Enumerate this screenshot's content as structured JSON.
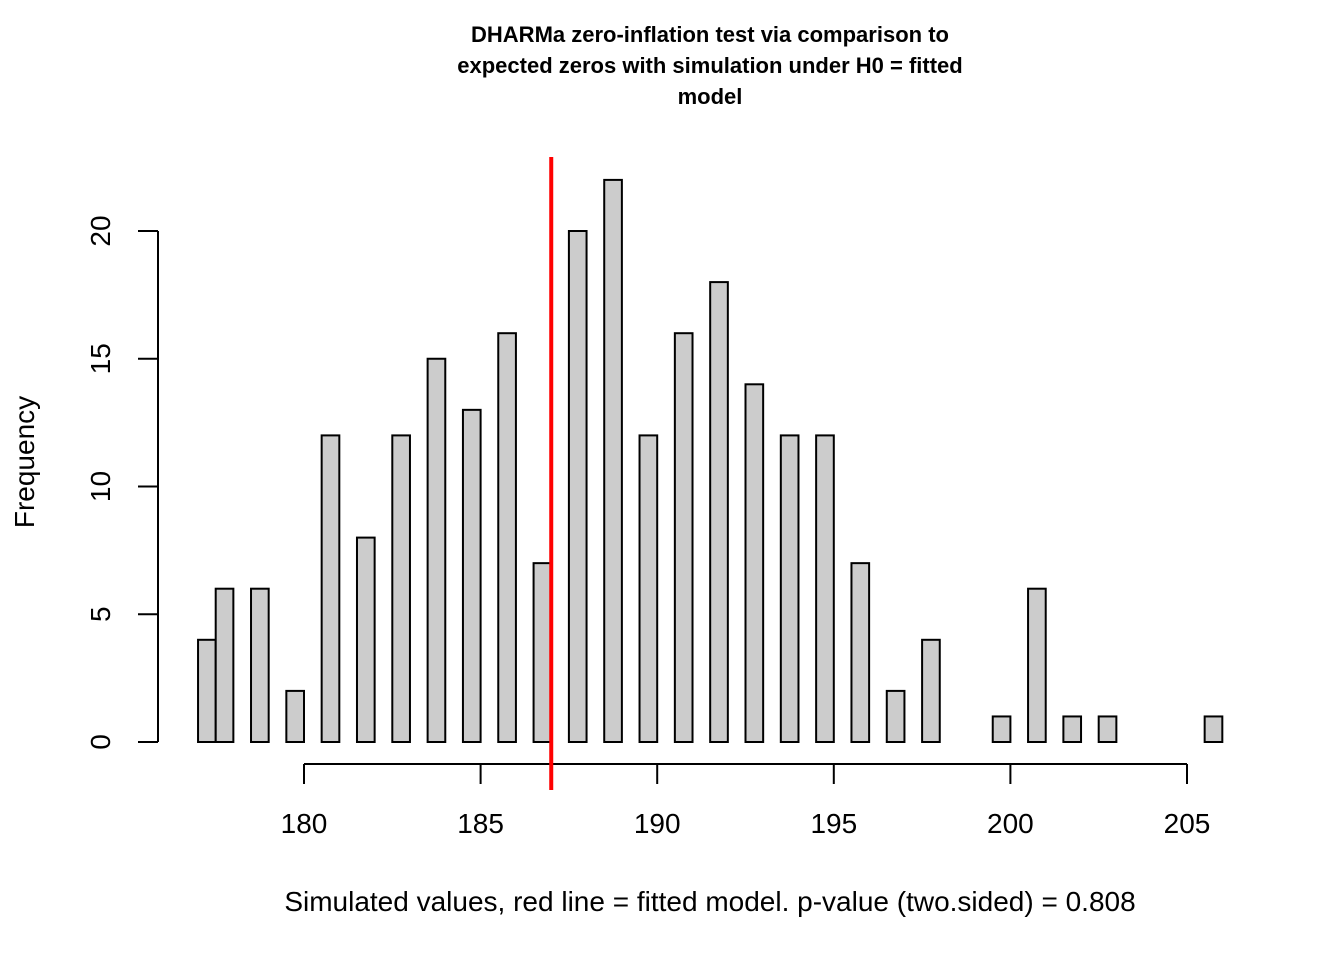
{
  "chart_data": {
    "type": "bar",
    "subtype": "histogram",
    "title_lines": [
      "DHARMa zero-inflation test via comparison to",
      "expected zeros with simulation under H0 = fitted",
      "model"
    ],
    "xlabel": "Simulated values, red line = fitted model. p-value (two.sided) = 0.808",
    "ylabel": "Frequency",
    "xlim": [
      177,
      206
    ],
    "ylim": [
      0,
      22
    ],
    "x_ticks": [
      180,
      185,
      190,
      195,
      200,
      205
    ],
    "y_ticks": [
      0,
      5,
      10,
      15,
      20
    ],
    "bin_width": 0.5,
    "bin_start": 177,
    "counts": [
      4,
      6,
      0,
      6,
      0,
      2,
      0,
      12,
      0,
      8,
      0,
      12,
      0,
      15,
      0,
      13,
      0,
      16,
      0,
      7,
      0,
      20,
      0,
      22,
      0,
      12,
      0,
      16,
      0,
      18,
      0,
      14,
      0,
      12,
      0,
      12,
      0,
      7,
      0,
      2,
      0,
      4,
      0,
      0,
      0,
      1,
      0,
      6,
      0,
      1,
      0,
      1,
      0,
      0,
      0,
      0,
      0,
      1
    ],
    "observed_line": {
      "value": 187,
      "color": "#ff0000",
      "label": "fitted model"
    },
    "bar_fill": "#cccccc",
    "bar_stroke": "#000000",
    "grid": false,
    "p_value": 0.808
  }
}
